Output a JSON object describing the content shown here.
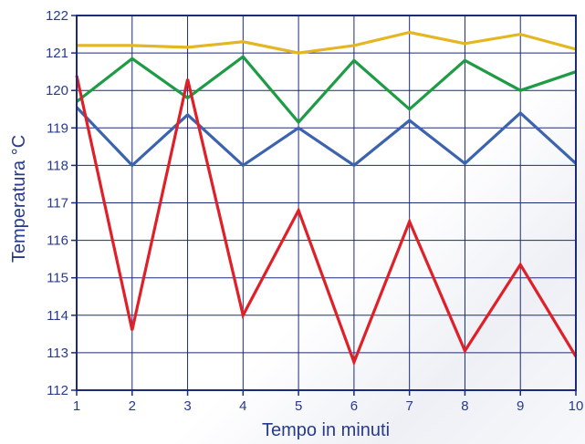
{
  "chart_data": {
    "type": "line",
    "title": "",
    "xlabel": "Tempo in minuti",
    "ylabel": "Temperatura °C",
    "x": [
      1,
      2,
      3,
      4,
      5,
      6,
      7,
      8,
      9,
      10
    ],
    "xlim": [
      1,
      10
    ],
    "ylim": [
      112,
      122
    ],
    "xticks": [
      "1",
      "2",
      "3",
      "4",
      "5",
      "6",
      "7",
      "8",
      "9",
      "10"
    ],
    "yticks": [
      "112",
      "113",
      "114",
      "115",
      "116",
      "117",
      "118",
      "119",
      "120",
      "121",
      "122"
    ],
    "grid": true,
    "legend": false,
    "series": [
      {
        "color": "#e4b621",
        "values": [
          121.2,
          121.2,
          121.15,
          121.3,
          121.0,
          121.2,
          121.55,
          121.25,
          121.5,
          121.1
        ]
      },
      {
        "color": "#1e9b45",
        "values": [
          119.7,
          120.85,
          119.8,
          120.9,
          119.15,
          120.8,
          119.5,
          120.8,
          120.0,
          120.5
        ]
      },
      {
        "color": "#3c63ae",
        "values": [
          119.55,
          118.0,
          119.35,
          118.0,
          119.0,
          118.0,
          119.2,
          118.05,
          119.4,
          118.05
        ]
      },
      {
        "color": "#df2028",
        "values": [
          120.4,
          113.6,
          120.3,
          114.0,
          116.8,
          112.75,
          116.5,
          113.05,
          115.35,
          112.9
        ]
      }
    ],
    "colors": {
      "axis": "#1c2a7a",
      "grid": "#1c2a7a",
      "text": "#283a8c"
    }
  }
}
